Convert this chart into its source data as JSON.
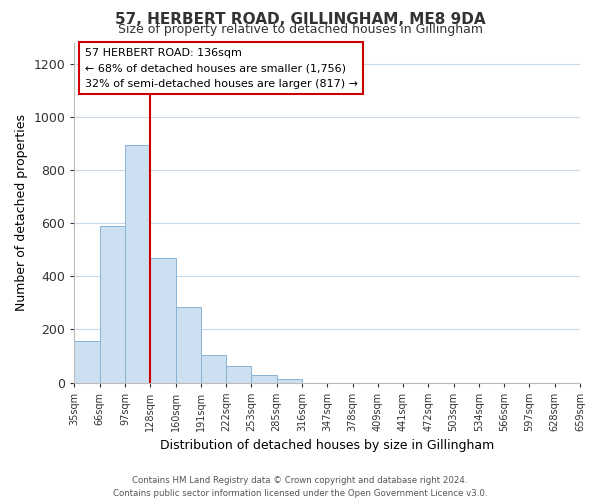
{
  "title": "57, HERBERT ROAD, GILLINGHAM, ME8 9DA",
  "subtitle": "Size of property relative to detached houses in Gillingham",
  "xlabel": "Distribution of detached houses by size in Gillingham",
  "ylabel": "Number of detached properties",
  "bin_labels": [
    "35sqm",
    "66sqm",
    "97sqm",
    "128sqm",
    "160sqm",
    "191sqm",
    "222sqm",
    "253sqm",
    "285sqm",
    "316sqm",
    "347sqm",
    "378sqm",
    "409sqm",
    "441sqm",
    "472sqm",
    "503sqm",
    "534sqm",
    "566sqm",
    "597sqm",
    "628sqm",
    "659sqm"
  ],
  "bar_values": [
    155,
    590,
    895,
    470,
    285,
    105,
    62,
    27,
    15,
    0,
    0,
    0,
    0,
    0,
    0,
    0,
    0,
    0,
    0,
    0
  ],
  "bar_color": "#cde0f2",
  "bar_edge_color": "#8ab4d4",
  "property_line_x": 3.0,
  "property_line_color": "#cc0000",
  "ylim": [
    0,
    1280
  ],
  "yticks": [
    0,
    200,
    400,
    600,
    800,
    1000,
    1200
  ],
  "annotation_title": "57 HERBERT ROAD: 136sqm",
  "annotation_line1": "← 68% of detached houses are smaller (1,756)",
  "annotation_line2": "32% of semi-detached houses are larger (817) →",
  "annotation_box_color": "#ffffff",
  "annotation_box_edge_color": "#cc0000",
  "footer_line1": "Contains HM Land Registry data © Crown copyright and database right 2024.",
  "footer_line2": "Contains public sector information licensed under the Open Government Licence v3.0.",
  "background_color": "#ffffff",
  "grid_color": "#c8d8e8"
}
